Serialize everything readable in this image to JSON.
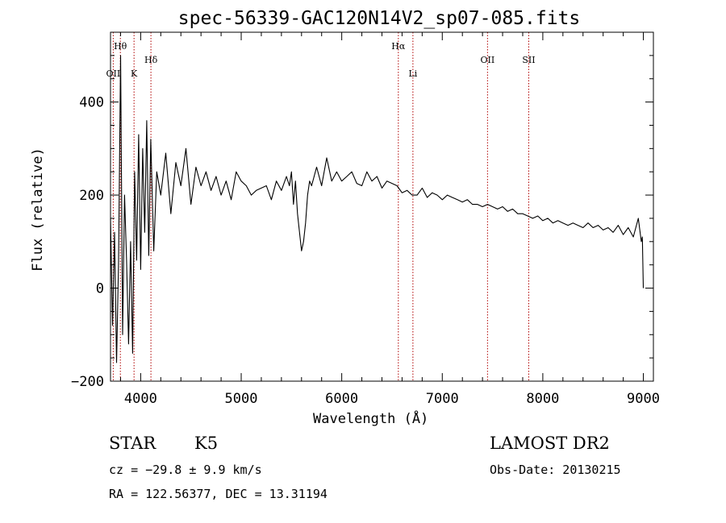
{
  "chart_data": {
    "type": "line",
    "title": "spec-56339-GAC120N14V2_sp07-085.fits",
    "xlabel": "Wavelength (Å)",
    "ylabel": "Flux (relative)",
    "xlim": [
      3700,
      9100
    ],
    "ylim": [
      -200,
      550
    ],
    "xticks": [
      4000,
      5000,
      6000,
      7000,
      8000,
      9000
    ],
    "yticks": [
      -200,
      0,
      200,
      400
    ],
    "xtick_labels": [
      "4000",
      "5000",
      "6000",
      "7000",
      "8000",
      "9000"
    ],
    "ytick_labels": [
      "−200",
      "0",
      "200",
      "400"
    ],
    "grid": false,
    "series": [
      {
        "name": "spectrum",
        "x": [
          3700,
          3720,
          3740,
          3760,
          3780,
          3800,
          3820,
          3840,
          3860,
          3880,
          3900,
          3920,
          3940,
          3960,
          3980,
          4000,
          4020,
          4040,
          4060,
          4080,
          4100,
          4130,
          4160,
          4200,
          4250,
          4300,
          4350,
          4400,
          4450,
          4500,
          4550,
          4600,
          4650,
          4700,
          4750,
          4800,
          4850,
          4900,
          4950,
          5000,
          5050,
          5100,
          5150,
          5200,
          5250,
          5300,
          5350,
          5400,
          5450,
          5480,
          5500,
          5520,
          5540,
          5560,
          5580,
          5600,
          5620,
          5640,
          5660,
          5680,
          5700,
          5750,
          5800,
          5850,
          5900,
          5950,
          6000,
          6050,
          6100,
          6150,
          6200,
          6250,
          6300,
          6350,
          6400,
          6450,
          6500,
          6550,
          6600,
          6650,
          6700,
          6750,
          6800,
          6850,
          6900,
          6950,
          7000,
          7050,
          7100,
          7150,
          7200,
          7250,
          7300,
          7350,
          7400,
          7450,
          7500,
          7550,
          7600,
          7650,
          7700,
          7750,
          7800,
          7850,
          7900,
          7950,
          8000,
          8050,
          8100,
          8150,
          8200,
          8250,
          8300,
          8350,
          8400,
          8450,
          8500,
          8550,
          8600,
          8650,
          8700,
          8750,
          8800,
          8850,
          8900,
          8950,
          8980,
          8990,
          9000
        ],
        "y": [
          150,
          -80,
          120,
          -160,
          60,
          500,
          -100,
          200,
          60,
          -120,
          100,
          -140,
          250,
          60,
          330,
          40,
          300,
          120,
          360,
          70,
          320,
          80,
          250,
          200,
          290,
          160,
          270,
          220,
          300,
          180,
          260,
          220,
          250,
          210,
          240,
          200,
          230,
          190,
          250,
          230,
          220,
          200,
          210,
          215,
          220,
          190,
          230,
          210,
          240,
          220,
          250,
          180,
          230,
          160,
          120,
          80,
          100,
          140,
          200,
          230,
          220,
          260,
          220,
          280,
          230,
          250,
          230,
          240,
          250,
          225,
          220,
          250,
          230,
          240,
          215,
          230,
          225,
          220,
          205,
          210,
          200,
          200,
          215,
          195,
          205,
          200,
          190,
          200,
          195,
          190,
          185,
          190,
          180,
          180,
          175,
          180,
          175,
          170,
          175,
          165,
          170,
          160,
          160,
          155,
          150,
          155,
          145,
          150,
          140,
          145,
          140,
          135,
          140,
          135,
          130,
          140,
          130,
          135,
          125,
          130,
          120,
          135,
          115,
          130,
          110,
          150,
          100,
          110,
          0
        ]
      }
    ],
    "spectral_lines": [
      {
        "label": "OII",
        "x": 3727,
        "row": 3
      },
      {
        "label": "Hθ",
        "x": 3798,
        "row": 1
      },
      {
        "label": "K",
        "x": 3934,
        "row": 3
      },
      {
        "label": "Hδ",
        "x": 4102,
        "row": 2
      },
      {
        "label": "Hα",
        "x": 6563,
        "row": 1
      },
      {
        "label": "Li",
        "x": 6708,
        "row": 3
      },
      {
        "label": "OII",
        "x": 7450,
        "row": 2
      },
      {
        "label": "SII",
        "x": 7860,
        "row": 2
      }
    ]
  },
  "info": {
    "object_class": "STAR",
    "subclass": "K5",
    "survey": "LAMOST DR2",
    "redshift_line": "cz = −29.8 ± 9.9 km/s",
    "obs_date_line": "Obs-Date: 20130215",
    "coords_line": "RA = 122.56377, DEC =  13.31194"
  }
}
